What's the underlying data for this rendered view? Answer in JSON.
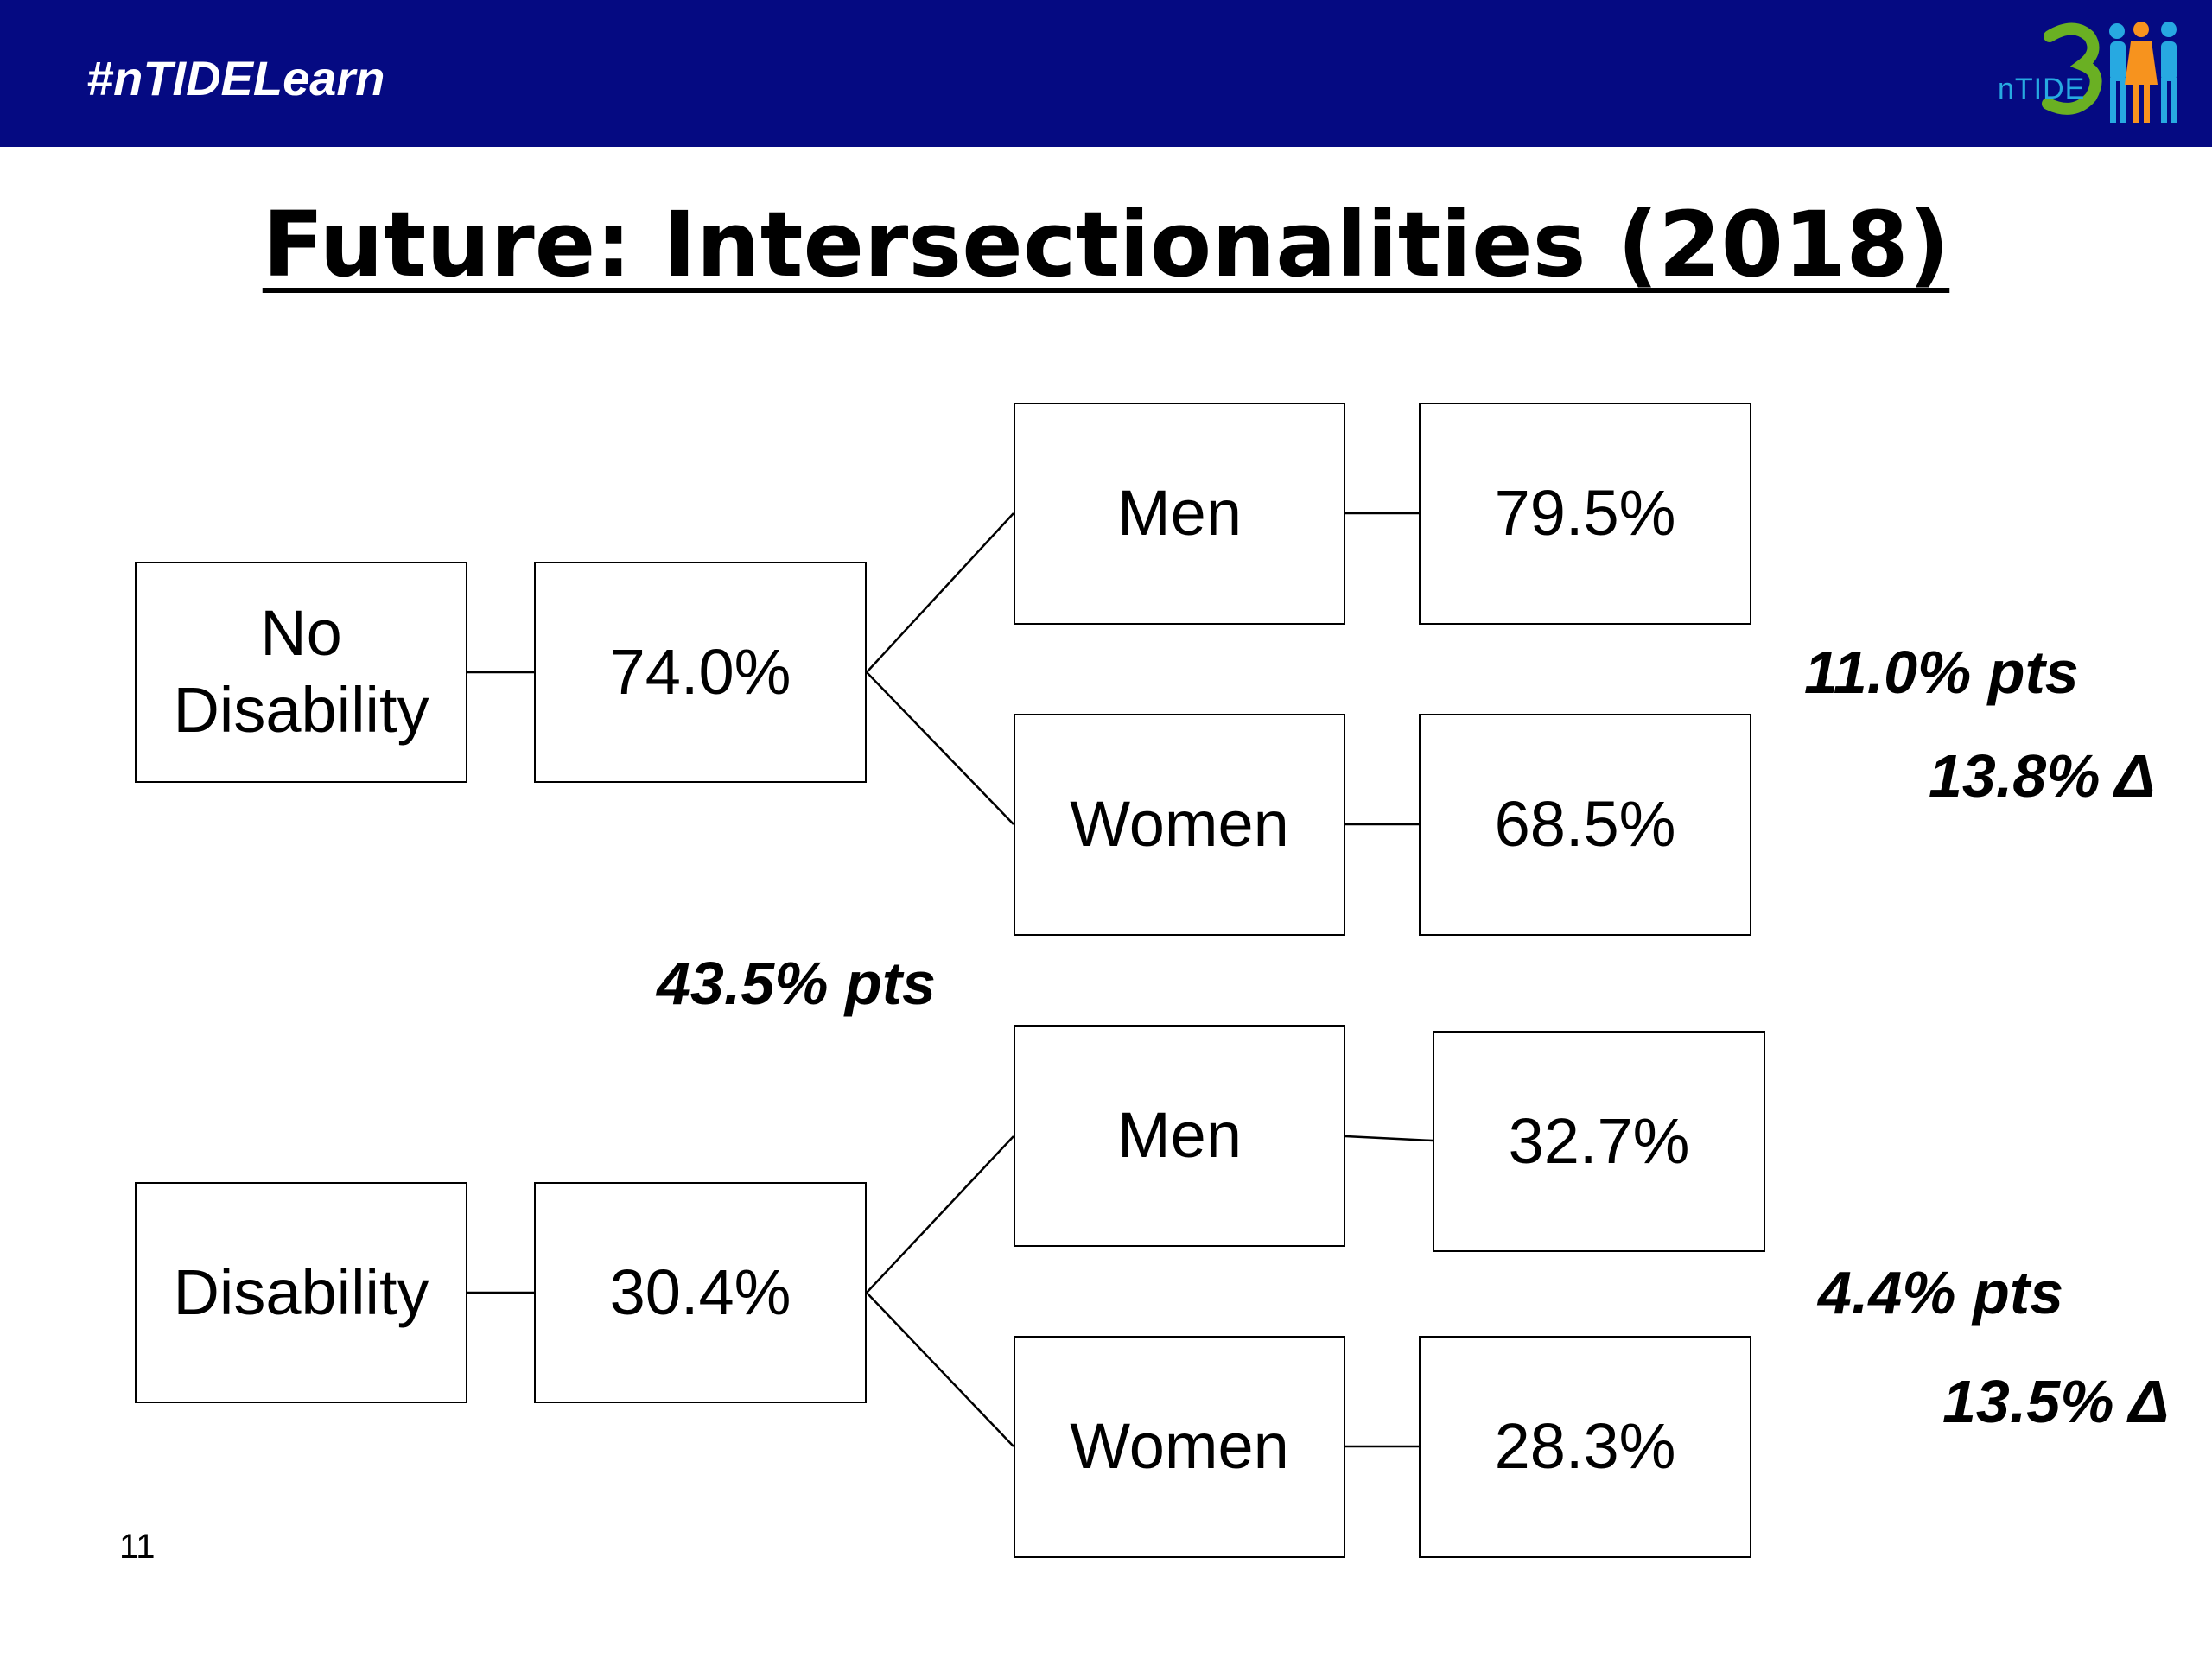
{
  "header": {
    "hashtag": "#nTIDELearn",
    "logo_text": "nTIDE",
    "background": "#050a82"
  },
  "title": "Future: Intersectionalities (2018)",
  "tree": {
    "no_disability": {
      "label": "No Disability",
      "rate": "74.0%",
      "men": {
        "label": "Men",
        "rate": "79.5%"
      },
      "women": {
        "label": "Women",
        "rate": "68.5%"
      },
      "gap_pts": "11.0% pts",
      "gap_delta": "13.8% Δ"
    },
    "disability": {
      "label": "Disability",
      "rate": "30.4%",
      "men": {
        "label": "Men",
        "rate": "32.7%"
      },
      "women": {
        "label": "Women",
        "rate": "28.3%"
      },
      "gap_pts": "4.4% pts",
      "gap_delta": "13.5% Δ"
    },
    "between_groups_gap": "43.5% pts"
  },
  "slide_number": "11"
}
